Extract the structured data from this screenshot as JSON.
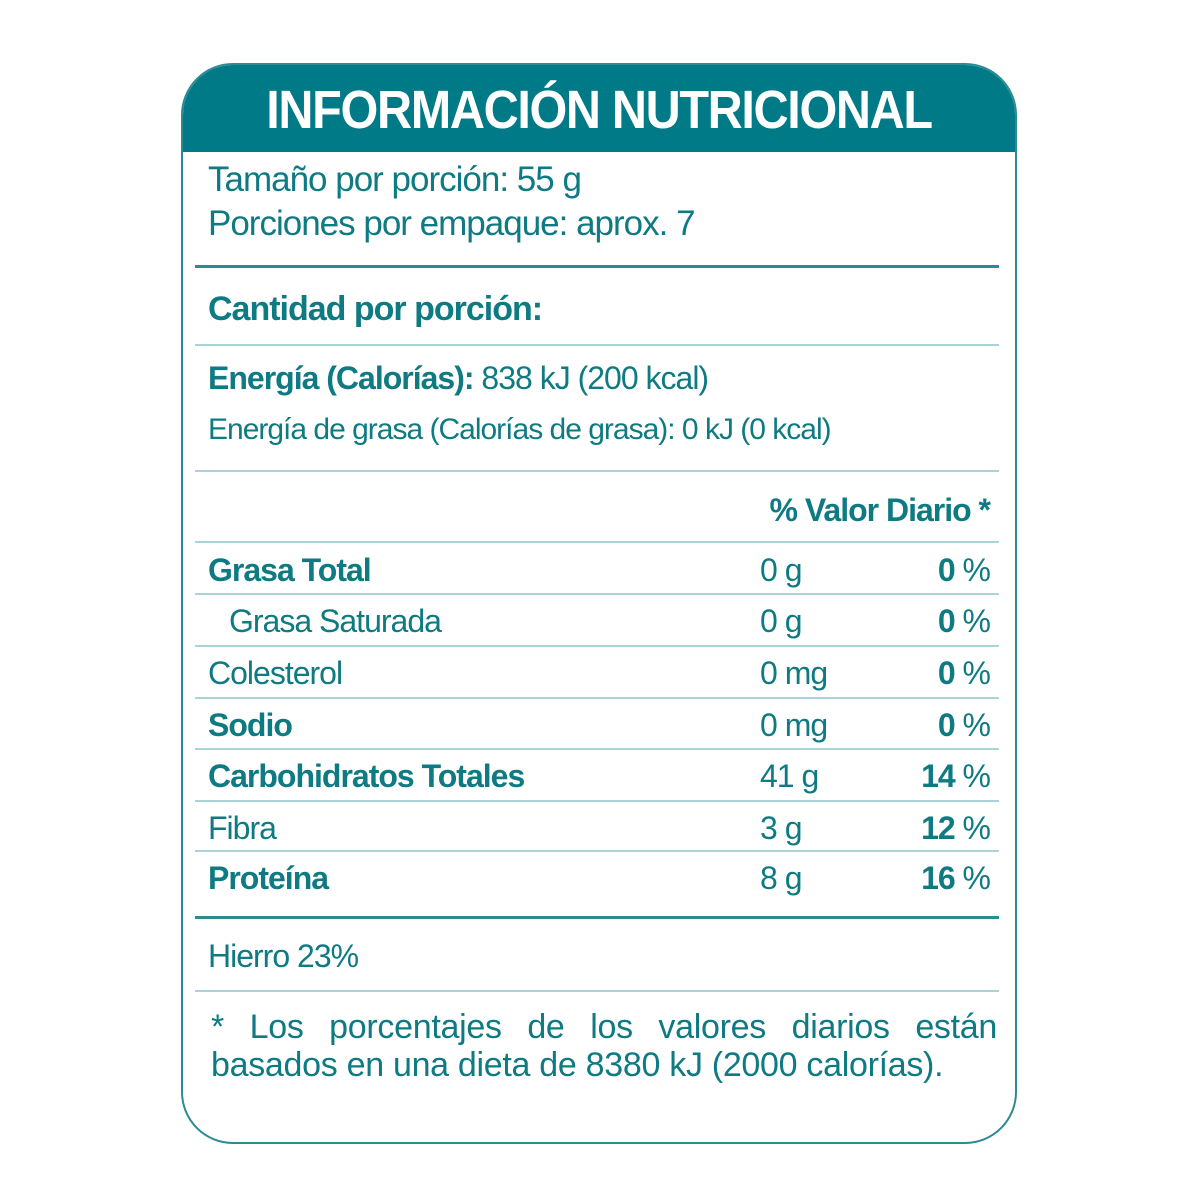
{
  "title": "INFORMACIÓN NUTRICIONAL",
  "serving_size": "Tamaño por porción: 55 g",
  "servings_per_package": "Porciones por empaque: aprox. 7",
  "amount_per_serving": "Cantidad por porción:",
  "energy": {
    "label": "Energía (Calorías):",
    "value": "838 kJ (200 kcal)"
  },
  "energy_fat": "Energía de grasa (Calorías de grasa): 0 kJ (0 kcal)",
  "dv_header": "% Valor  Diario *",
  "nutrients": [
    {
      "name": "Grasa Total",
      "amount": "0 g",
      "dv": "0",
      "bold": true
    },
    {
      "name": "Grasa Saturada",
      "amount": "0 g",
      "dv": "0",
      "bold": false,
      "indent": true
    },
    {
      "name": "Colesterol",
      "amount": "0 mg",
      "dv": "0",
      "bold": false
    },
    {
      "name": "Sodio",
      "amount": "0 mg",
      "dv": "0",
      "bold": true
    },
    {
      "name": "Carbohidratos Totales",
      "amount": "41 g",
      "dv": "14",
      "bold": true
    },
    {
      "name": "Fibra",
      "amount": "3 g",
      "dv": "12",
      "bold": false
    },
    {
      "name": "Proteína",
      "amount": "8 g",
      "dv": "16",
      "bold": true
    }
  ],
  "percent_sign": "%",
  "iron": "Hierro  23%",
  "footnote": "* Los porcentajes de los valores diarios están basados en una dieta de 8380 kJ (2000 calorías).",
  "colors": {
    "primary": "#007a87",
    "text": "#0e7a82",
    "divider": "#a9d3d7"
  }
}
